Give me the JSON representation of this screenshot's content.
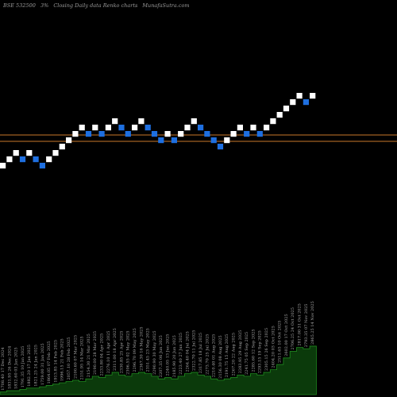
{
  "header": {
    "symbol": "BSE 532500",
    "box_size": "3%",
    "chart_kind": "Closing Daily data Renko charts",
    "site": "MunafaSutra.com"
  },
  "colors": {
    "background": "#000000",
    "up_brick": "#ffffff",
    "down_brick": "#1e6fe0",
    "reference_line": "#c8782a",
    "volume_fill": "#0b3a0b",
    "volume_line": "#1f8a1f",
    "label_text": "#aaaaaa"
  },
  "chart_data": {
    "type": "renko",
    "ref_lines_brick_index": [
      5.5,
      4.5
    ],
    "bricks": [
      {
        "dir": "up",
        "level": 1
      },
      {
        "dir": "up",
        "level": 2
      },
      {
        "dir": "up",
        "level": 3
      },
      {
        "dir": "down",
        "level": 2
      },
      {
        "dir": "up",
        "level": 3
      },
      {
        "dir": "down",
        "level": 2
      },
      {
        "dir": "down",
        "level": 1
      },
      {
        "dir": "up",
        "level": 2
      },
      {
        "dir": "up",
        "level": 3
      },
      {
        "dir": "up",
        "level": 4
      },
      {
        "dir": "up",
        "level": 5
      },
      {
        "dir": "up",
        "level": 6
      },
      {
        "dir": "up",
        "level": 7
      },
      {
        "dir": "down",
        "level": 6
      },
      {
        "dir": "up",
        "level": 7
      },
      {
        "dir": "down",
        "level": 6
      },
      {
        "dir": "up",
        "level": 7
      },
      {
        "dir": "up",
        "level": 8
      },
      {
        "dir": "down",
        "level": 7
      },
      {
        "dir": "down",
        "level": 6
      },
      {
        "dir": "up",
        "level": 7
      },
      {
        "dir": "up",
        "level": 8
      },
      {
        "dir": "down",
        "level": 7
      },
      {
        "dir": "down",
        "level": 6
      },
      {
        "dir": "down",
        "level": 5
      },
      {
        "dir": "up",
        "level": 6
      },
      {
        "dir": "down",
        "level": 5
      },
      {
        "dir": "up",
        "level": 6
      },
      {
        "dir": "up",
        "level": 7
      },
      {
        "dir": "up",
        "level": 8
      },
      {
        "dir": "down",
        "level": 7
      },
      {
        "dir": "down",
        "level": 6
      },
      {
        "dir": "down",
        "level": 5
      },
      {
        "dir": "down",
        "level": 4
      },
      {
        "dir": "up",
        "level": 5
      },
      {
        "dir": "up",
        "level": 6
      },
      {
        "dir": "up",
        "level": 7
      },
      {
        "dir": "down",
        "level": 6
      },
      {
        "dir": "up",
        "level": 7
      },
      {
        "dir": "down",
        "level": 6
      },
      {
        "dir": "up",
        "level": 7
      },
      {
        "dir": "up",
        "level": 8
      },
      {
        "dir": "up",
        "level": 9
      },
      {
        "dir": "up",
        "level": 10
      },
      {
        "dir": "up",
        "level": 11
      },
      {
        "dir": "up",
        "level": 12
      },
      {
        "dir": "down",
        "level": 11
      },
      {
        "dir": "up",
        "level": 12
      }
    ],
    "volume": [
      2,
      3,
      3,
      4,
      5,
      5,
      6,
      7,
      8,
      9,
      10,
      11,
      10,
      12,
      14,
      13,
      15,
      17,
      15,
      14,
      16,
      17,
      16,
      14,
      12,
      13,
      12,
      14,
      16,
      17,
      15,
      14,
      12,
      11,
      12,
      13,
      15,
      14,
      16,
      15,
      17,
      19,
      23,
      28,
      33,
      36,
      35,
      37
    ],
    "price_labels": [
      "1708.40",
      "1831.95",
      "1832.60",
      "1791.35",
      "1882.20",
      "1821.25",
      "1759.00",
      "1864.05",
      "1913.85",
      "1996.15",
      "2057.10",
      "2100.60",
      "2151.95",
      "2154.30",
      "2190.00",
      "2233.80",
      "2276.10",
      "2311.00",
      "2330.85",
      "2306.55",
      "2296.70",
      "2367.30",
      "2351.45",
      "2290.90",
      "2207.35",
      "2240.05",
      "2185.90",
      "2223.40",
      "2264.40",
      "2322.70",
      "2317.85",
      "2273.70",
      "2210.40",
      "2156.30",
      "2191.75",
      "2267.20",
      "2283.95",
      "2241.75",
      "2285.60",
      "2293.15",
      "2305.15",
      "2404.20",
      "2511.65",
      "2602.00",
      "2706.25",
      "2817.00",
      "2793.35",
      "2865.25"
    ],
    "date_labels": [
      "17 Dec 2024",
      "26 Dec 2024",
      "03 Jan 2025",
      "10 Jan 2025",
      "17 Jan 2025",
      "24 Jan 2025",
      "31 Jan 2025",
      "07 Feb 2025",
      "14 Feb 2025",
      "21 Feb 2025",
      "28 Feb 2025",
      "07 Mar 2025",
      "14 Mar 2025",
      "21 Mar 2025",
      "28 Mar 2025",
      "04 Apr 2025",
      "11 Apr 2025",
      "18 Apr 2025",
      "25 Apr 2025",
      "02 May 2025",
      "09 May 2025",
      "16 May 2025",
      "23 May 2025",
      "30 May 2025",
      "06 Jun 2025",
      "13 Jun 2025",
      "20 Jun 2025",
      "27 Jun 2025",
      "04 Jul 2025",
      "11 Jul 2025",
      "18 Jul 2025",
      "25 Jul 2025",
      "01 Aug 2025",
      "08 Aug 2025",
      "15 Aug 2025",
      "22 Aug 2025",
      "29 Aug 2025",
      "05 Sep 2025",
      "12 Sep 2025",
      "19 Sep 2025",
      "26 Sep 2025",
      "03 Oct 2025",
      "10 Oct 2025",
      "17 Oct 2025",
      "24 Oct 2025",
      "31 Oct 2025",
      "07 Nov 2025",
      "14 Nov 2025"
    ]
  }
}
